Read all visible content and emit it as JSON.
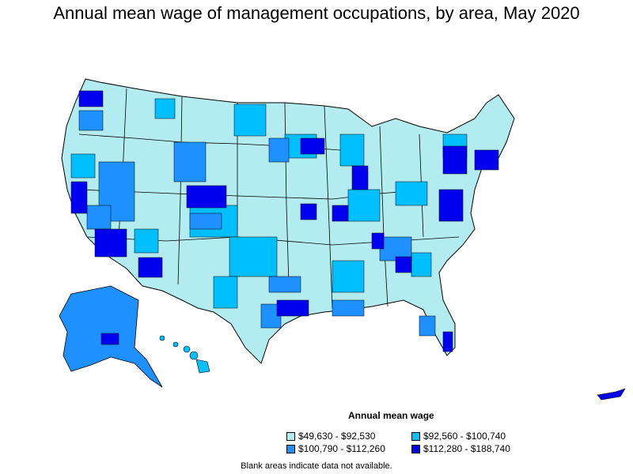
{
  "title": "Annual mean wage of management occupations, by area, May 2020",
  "legend": {
    "title": "Annual mean wage",
    "items": [
      {
        "label": "$49,630 - $92,530",
        "color": "#b3ecf0"
      },
      {
        "label": "$92,560 - $100,740",
        "color": "#00bfff"
      },
      {
        "label": "$100,790 - $112,260",
        "color": "#1e90ff"
      },
      {
        "label": "$112,280 - $188,740",
        "color": "#0000ee"
      }
    ]
  },
  "footnote": "Blank areas indicate data not available.",
  "colors": {
    "tier1": "#b3ecf0",
    "tier2": "#00bfff",
    "tier3": "#1e90ff",
    "tier4": "#0000ee",
    "border": "#000000"
  }
}
